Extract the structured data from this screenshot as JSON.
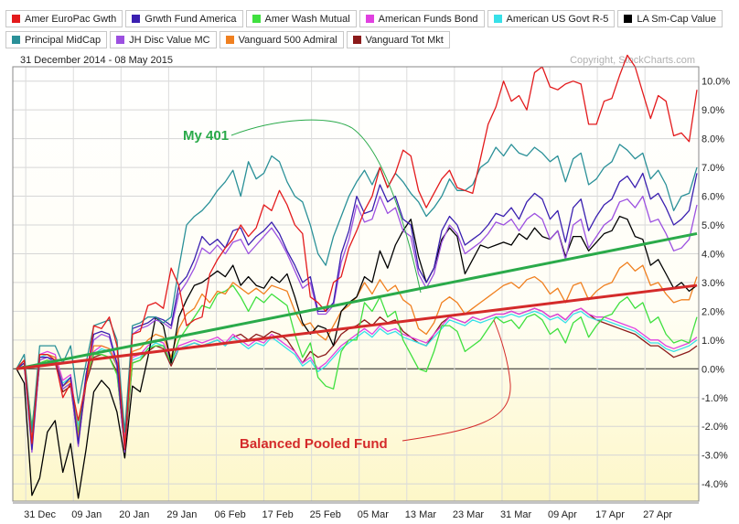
{
  "legend": [
    {
      "label": "Amer EuroPac Gwth",
      "color": "#e31a1c"
    },
    {
      "label": "Grwth Fund America",
      "color": "#3a1fb0"
    },
    {
      "label": "Amer Wash Mutual",
      "color": "#3fe03f"
    },
    {
      "label": "American Funds Bond",
      "color": "#e040e0"
    },
    {
      "label": "American US Govt R-5",
      "color": "#37e0e8"
    },
    {
      "label": "LA Sm-Cap Value",
      "color": "#000000"
    },
    {
      "label": "Principal MidCap",
      "color": "#2a9098"
    },
    {
      "label": "JH Disc Value MC",
      "color": "#9c50e0"
    },
    {
      "label": "Vanguard 500 Admiral",
      "color": "#f08020"
    },
    {
      "label": "Vanguard Tot Mkt",
      "color": "#8b1a1a"
    }
  ],
  "date_range": "31 December 2014 - 08 May 2015",
  "copyright": "Copyright, StockCharts.com",
  "chart_data": {
    "type": "line",
    "x_tick_labels": [
      "31 Dec",
      "09 Jan",
      "20 Jan",
      "29 Jan",
      "06 Feb",
      "17 Feb",
      "25 Feb",
      "05 Mar",
      "13 Mar",
      "23 Mar",
      "31 Mar",
      "09 Apr",
      "17 Apr",
      "27 Apr"
    ],
    "y_tick_labels": [
      "10.0%",
      "9.0%",
      "8.0%",
      "7.0%",
      "6.0%",
      "5.0%",
      "4.0%",
      "3.0%",
      "2.0%",
      "1.0%",
      "0.0%",
      "-1.0%",
      "-2.0%",
      "-3.0%",
      "-4.0%"
    ],
    "ylim": [
      -4.6,
      10.5
    ],
    "trading_days": 88,
    "series": [
      {
        "name": "Amer EuroPac Gwth",
        "color": "#e31a1c",
        "values": [
          0,
          0.3,
          -2.6,
          0.5,
          0.5,
          0.3,
          -1.0,
          -0.5,
          -1.8,
          -0.5,
          1.5,
          1.4,
          1.8,
          0.8,
          -2.8,
          1.2,
          1.3,
          2.2,
          2.3,
          2.1,
          3.5,
          2.9,
          1.5,
          1.7,
          1.8,
          3.3,
          3.8,
          4.2,
          4.5,
          5.0,
          4.6,
          4.9,
          5.7,
          5.5,
          6.2,
          5.7,
          5.0,
          4.7,
          2.5,
          2.3,
          2.0,
          3.0,
          3.2,
          4.2,
          4.8,
          5.5,
          6.0,
          7.0,
          6.3,
          6.8,
          7.6,
          7.4,
          6.2,
          5.6,
          6.1,
          6.6,
          6.9,
          6.3,
          6.2,
          6.1,
          7.3,
          8.5,
          9.1,
          10.0,
          9.3,
          9.5,
          9.0,
          10.3,
          10.5,
          9.8,
          9.7,
          9.9,
          10.0,
          9.9,
          8.5,
          8.5,
          9.3,
          9.4,
          10.2,
          10.9,
          10.5,
          9.6,
          8.7,
          9.5,
          9.3,
          8.1,
          8.2,
          7.9,
          9.7
        ]
      },
      {
        "name": "Principal MidCap",
        "color": "#2a9098",
        "values": [
          0,
          0.5,
          -2.2,
          0.8,
          0.8,
          0.8,
          0.2,
          0.8,
          -1.2,
          0.2,
          1.5,
          1.6,
          1.7,
          1.0,
          -2.2,
          1.5,
          1.6,
          1.8,
          1.8,
          1.6,
          1.8,
          3.5,
          5.0,
          5.3,
          5.5,
          5.8,
          6.2,
          6.5,
          6.9,
          6.0,
          7.2,
          6.6,
          6.8,
          7.4,
          7.2,
          6.5,
          6.0,
          5.8,
          5.0,
          4.0,
          3.6,
          4.6,
          5.3,
          6.0,
          6.5,
          6.9,
          6.4,
          7.0,
          6.3,
          6.8,
          6.5,
          6.1,
          5.8,
          5.3,
          5.6,
          6.0,
          6.6,
          6.2,
          6.2,
          6.4,
          7.0,
          7.2,
          7.7,
          7.4,
          7.8,
          7.5,
          7.4,
          7.7,
          7.5,
          7.2,
          7.4,
          6.5,
          7.3,
          7.5,
          6.4,
          6.6,
          7.0,
          7.2,
          7.8,
          7.6,
          7.3,
          7.5,
          6.6,
          6.9,
          6.4,
          5.5,
          6.0,
          6.1,
          7.0
        ]
      },
      {
        "name": "Grwth Fund America",
        "color": "#3a1fb0",
        "values": [
          0,
          0.2,
          -2.8,
          0.4,
          0.4,
          0.3,
          -0.6,
          -0.3,
          -2.6,
          -0.2,
          1.2,
          1.3,
          1.2,
          0.2,
          -2.8,
          1.4,
          1.5,
          1.6,
          1.8,
          1.7,
          1.5,
          2.9,
          3.2,
          3.8,
          4.6,
          4.3,
          4.5,
          4.2,
          4.8,
          4.9,
          4.3,
          4.6,
          4.8,
          5.1,
          4.7,
          4.1,
          3.6,
          3.0,
          3.2,
          2.0,
          2.0,
          2.3,
          4.0,
          4.8,
          6.0,
          5.4,
          5.5,
          6.4,
          5.8,
          6.0,
          5.2,
          5.0,
          3.5,
          3.0,
          3.5,
          4.8,
          5.3,
          5.0,
          4.3,
          4.5,
          4.7,
          5.0,
          5.4,
          5.3,
          5.6,
          5.2,
          5.8,
          6.1,
          5.9,
          5.2,
          5.5,
          4.4,
          5.6,
          5.9,
          4.8,
          5.3,
          5.7,
          5.9,
          6.5,
          6.7,
          6.3,
          6.8,
          5.9,
          6.1,
          5.6,
          5.0,
          5.2,
          5.5,
          6.8
        ]
      },
      {
        "name": "JH Disc Value MC",
        "color": "#9c50e0",
        "values": [
          0,
          0.2,
          -2.9,
          0.3,
          0.4,
          0.2,
          -0.7,
          -0.5,
          -2.7,
          -0.3,
          1.0,
          1.2,
          1.1,
          0.1,
          -2.9,
          1.2,
          1.4,
          1.5,
          1.7,
          1.6,
          1.4,
          2.6,
          3.0,
          3.5,
          4.2,
          4.0,
          4.3,
          4.0,
          4.4,
          4.5,
          4.0,
          4.3,
          4.6,
          4.9,
          4.5,
          4.0,
          3.4,
          2.8,
          3.0,
          1.9,
          1.9,
          2.2,
          3.7,
          4.5,
          5.7,
          5.1,
          5.2,
          6.0,
          5.4,
          5.6,
          4.8,
          4.6,
          3.3,
          2.8,
          3.3,
          4.4,
          5.0,
          4.7,
          4.0,
          4.2,
          4.4,
          4.7,
          5.1,
          5.0,
          5.2,
          4.8,
          5.2,
          5.4,
          5.2,
          4.5,
          4.8,
          3.8,
          5.0,
          5.2,
          4.2,
          4.6,
          5.0,
          5.2,
          5.8,
          5.9,
          5.6,
          6.0,
          5.1,
          5.2,
          4.7,
          4.1,
          4.2,
          4.5,
          5.7
        ]
      },
      {
        "name": "LA Sm-Cap Value",
        "color": "#000000",
        "values": [
          0,
          -0.5,
          -4.4,
          -3.8,
          -2.2,
          -1.8,
          -3.6,
          -2.6,
          -4.5,
          -2.8,
          -0.8,
          -0.4,
          -0.7,
          -1.5,
          -3.1,
          -0.6,
          -0.8,
          0.4,
          1.8,
          1.5,
          0.2,
          1.8,
          2.4,
          2.9,
          3.0,
          3.2,
          3.4,
          3.2,
          3.6,
          2.9,
          3.2,
          2.9,
          2.8,
          3.2,
          3.0,
          3.3,
          2.5,
          1.6,
          1.2,
          1.5,
          1.4,
          0.8,
          2.0,
          2.3,
          2.5,
          3.2,
          3.0,
          4.1,
          3.5,
          4.3,
          4.8,
          5.2,
          3.9,
          3.0,
          3.5,
          4.5,
          4.9,
          4.6,
          3.3,
          3.8,
          4.3,
          4.2,
          4.3,
          4.4,
          4.3,
          4.7,
          4.5,
          4.9,
          4.6,
          4.5,
          4.8,
          3.9,
          4.6,
          4.6,
          4.1,
          4.4,
          4.7,
          4.8,
          5.3,
          5.2,
          4.6,
          4.5,
          3.6,
          3.8,
          3.3,
          2.8,
          3.0,
          2.7,
          2.9
        ]
      },
      {
        "name": "Vanguard 500 Admiral",
        "color": "#f08020",
        "values": [
          0,
          0.3,
          -2.5,
          0.5,
          0.5,
          0.4,
          -0.6,
          -0.4,
          -2.4,
          -0.4,
          0.8,
          0.8,
          0.7,
          0.1,
          -2.6,
          0.6,
          0.7,
          1.0,
          1.2,
          1.1,
          0.4,
          1.4,
          1.9,
          2.1,
          2.6,
          2.3,
          2.7,
          2.6,
          3.0,
          2.8,
          2.6,
          2.8,
          2.6,
          2.9,
          2.8,
          2.7,
          2.0,
          1.5,
          1.6,
          1.2,
          1.0,
          1.5,
          2.0,
          2.2,
          2.5,
          3.0,
          2.6,
          3.1,
          2.7,
          2.9,
          2.4,
          2.2,
          1.4,
          1.2,
          1.6,
          2.3,
          2.5,
          2.3,
          1.9,
          2.1,
          2.3,
          2.5,
          2.7,
          2.9,
          3.0,
          2.8,
          3.1,
          3.2,
          3.0,
          2.6,
          2.8,
          2.3,
          2.9,
          3.0,
          2.4,
          2.7,
          2.9,
          3.0,
          3.5,
          3.7,
          3.4,
          3.6,
          2.9,
          3.0,
          2.6,
          2.3,
          2.4,
          2.4,
          3.2
        ]
      },
      {
        "name": "Amer Wash Mutual",
        "color": "#3fe03f",
        "values": [
          0,
          0.2,
          -2.0,
          0.2,
          0.3,
          0.2,
          -0.7,
          -0.5,
          -2.2,
          -0.3,
          0.5,
          0.5,
          0.4,
          -0.2,
          -2.6,
          0.2,
          0.3,
          0.7,
          0.8,
          0.8,
          0.2,
          1.0,
          1.4,
          1.8,
          2.2,
          2.1,
          2.6,
          2.7,
          2.9,
          2.5,
          2.0,
          2.5,
          2.3,
          2.6,
          2.4,
          2.2,
          1.2,
          0.4,
          0.9,
          -0.3,
          -0.6,
          -0.7,
          0.6,
          1.0,
          1.0,
          2.3,
          2.0,
          2.5,
          1.8,
          2.0,
          1.0,
          0.5,
          0.0,
          -0.1,
          0.6,
          1.5,
          1.5,
          1.3,
          0.6,
          0.8,
          1.0,
          1.4,
          1.8,
          1.6,
          1.7,
          1.4,
          1.8,
          1.9,
          1.7,
          1.2,
          1.4,
          0.9,
          1.6,
          1.8,
          1.1,
          1.5,
          1.8,
          1.9,
          2.3,
          2.5,
          2.1,
          2.3,
          1.6,
          1.8,
          1.2,
          0.9,
          1.0,
          0.9,
          1.8
        ]
      },
      {
        "name": "American Funds Bond",
        "color": "#e040e0",
        "values": [
          0,
          0.3,
          -2.4,
          0.5,
          0.6,
          0.5,
          -0.4,
          -0.2,
          -2.2,
          -0.2,
          0.6,
          0.8,
          0.7,
          0.2,
          -2.4,
          0.4,
          0.5,
          0.8,
          1.0,
          0.9,
          0.3,
          0.8,
          0.9,
          1.0,
          0.9,
          1.0,
          1.1,
          0.9,
          1.2,
          1.0,
          0.8,
          1.0,
          0.9,
          1.2,
          1.0,
          0.8,
          0.6,
          0.2,
          0.4,
          0.0,
          0.2,
          0.5,
          0.8,
          1.0,
          1.2,
          1.4,
          1.2,
          1.5,
          1.3,
          1.4,
          1.2,
          1.1,
          1.0,
          0.9,
          1.2,
          1.5,
          1.8,
          1.7,
          1.6,
          1.8,
          1.7,
          1.8,
          1.9,
          1.9,
          2.0,
          1.9,
          2.0,
          2.1,
          2.0,
          1.8,
          1.9,
          1.7,
          2.0,
          2.1,
          1.9,
          1.8,
          1.8,
          1.7,
          1.6,
          1.5,
          1.4,
          1.2,
          1.0,
          1.0,
          0.8,
          0.7,
          0.8,
          0.9,
          1.1
        ]
      },
      {
        "name": "American US Govt R-5",
        "color": "#37e0e8",
        "values": [
          0,
          0.3,
          -2.2,
          0.4,
          0.5,
          0.4,
          -0.5,
          -0.3,
          -2.0,
          -0.3,
          0.5,
          0.7,
          0.6,
          0.1,
          -2.2,
          0.3,
          0.4,
          0.7,
          0.9,
          0.8,
          0.2,
          0.7,
          0.8,
          0.9,
          0.8,
          0.9,
          1.0,
          0.8,
          1.1,
          0.9,
          0.7,
          0.9,
          0.8,
          1.1,
          0.9,
          0.7,
          0.5,
          0.1,
          0.3,
          -0.1,
          0.1,
          0.4,
          0.7,
          0.9,
          1.1,
          1.3,
          1.1,
          1.4,
          1.2,
          1.3,
          1.1,
          1.0,
          0.9,
          0.8,
          1.1,
          1.4,
          1.7,
          1.6,
          1.5,
          1.7,
          1.6,
          1.7,
          1.8,
          1.8,
          1.9,
          1.8,
          1.9,
          2.0,
          1.9,
          1.7,
          1.8,
          1.6,
          1.9,
          2.0,
          1.8,
          1.7,
          1.7,
          1.6,
          1.5,
          1.4,
          1.3,
          1.1,
          0.9,
          0.9,
          0.7,
          0.6,
          0.7,
          0.8,
          1.0
        ]
      },
      {
        "name": "Vanguard Tot Mkt",
        "color": "#8b1a1a",
        "values": [
          0,
          0.1,
          -2.6,
          0.2,
          0.3,
          0.2,
          -0.8,
          -0.6,
          -2.6,
          -0.5,
          0.4,
          0.5,
          0.4,
          -0.1,
          -2.8,
          0.2,
          0.3,
          0.6,
          0.8,
          0.7,
          0.1,
          0.7,
          0.8,
          0.9,
          0.8,
          0.9,
          1.0,
          0.8,
          1.1,
          1.2,
          1.0,
          1.2,
          1.1,
          1.3,
          1.2,
          1.0,
          0.6,
          0.2,
          0.6,
          0.4,
          0.5,
          0.8,
          1.2,
          1.4,
          1.5,
          1.7,
          1.5,
          1.8,
          1.6,
          1.7,
          1.3,
          1.1,
          0.9,
          0.8,
          1.2,
          1.6,
          1.8,
          1.7,
          1.6,
          1.8,
          1.7,
          1.8,
          1.9,
          1.9,
          2.0,
          1.9,
          2.0,
          2.1,
          2.0,
          1.8,
          1.9,
          1.7,
          2.0,
          2.1,
          1.9,
          1.7,
          1.6,
          1.5,
          1.4,
          1.3,
          1.2,
          1.0,
          0.8,
          0.8,
          0.6,
          0.4,
          0.5,
          0.6,
          0.8
        ]
      }
    ],
    "trend_lines": [
      {
        "name": "My 401",
        "color": "#2aaa4a",
        "from": 0.0,
        "to": 4.7
      },
      {
        "name": "Balanced Pooled Fund",
        "color": "#d42a2a",
        "from": 0.0,
        "to": 2.9
      }
    ],
    "annotations": [
      {
        "text": "My 401",
        "color": "#2aaa4a"
      },
      {
        "text": "Balanced Pooled Fund",
        "color": "#d42a2a"
      }
    ]
  }
}
